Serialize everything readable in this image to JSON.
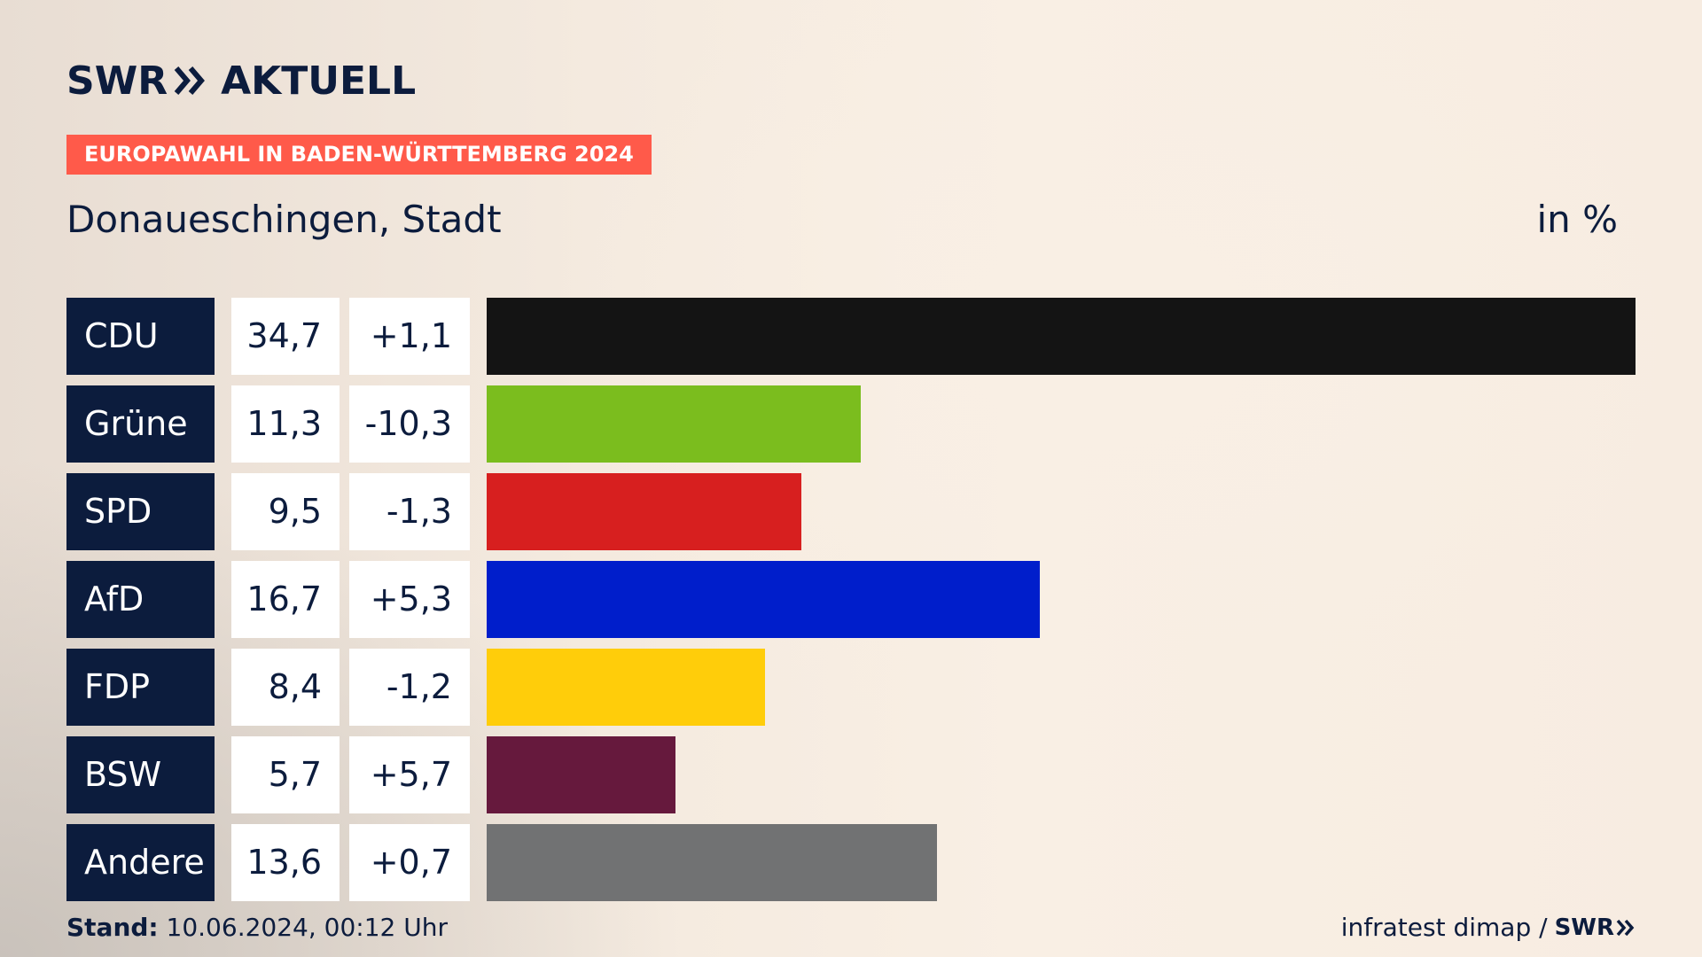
{
  "brand": {
    "logo_left": "SWR",
    "logo_right": "AKTUELL"
  },
  "tag": "EUROPAWAHL IN BADEN-WÜRTTEMBERG 2024",
  "subtitle": "Donaueschingen, Stadt",
  "unit": "in %",
  "colors": {
    "accent": "#ff5a4a",
    "navy": "#0c1c3d"
  },
  "chart_data": {
    "type": "bar",
    "orientation": "horizontal",
    "title": "Donaueschingen, Stadt",
    "unit": "in %",
    "xlim": [
      0,
      34.7
    ],
    "rows": [
      {
        "party": "CDU",
        "value": 34.7,
        "value_label": "34,7",
        "diff_label": "+1,1",
        "color": "#141414"
      },
      {
        "party": "Grüne",
        "value": 11.3,
        "value_label": "11,3",
        "diff_label": "-10,3",
        "color": "#7bbd1e"
      },
      {
        "party": "SPD",
        "value": 9.5,
        "value_label": "9,5",
        "diff_label": "-1,3",
        "color": "#d71f1f"
      },
      {
        "party": "AfD",
        "value": 16.7,
        "value_label": "16,7",
        "diff_label": "+5,3",
        "color": "#001ecb"
      },
      {
        "party": "FDP",
        "value": 8.4,
        "value_label": "8,4",
        "diff_label": "-1,2",
        "color": "#ffcd0a"
      },
      {
        "party": "BSW",
        "value": 5.7,
        "value_label": "5,7",
        "diff_label": "+5,7",
        "color": "#66193d"
      },
      {
        "party": "Andere",
        "value": 13.6,
        "value_label": "13,6",
        "diff_label": "+0,7",
        "color": "#717273"
      }
    ]
  },
  "footer": {
    "stand_label": "Stand:",
    "stand_value": "10.06.2024, 00:12 Uhr",
    "source": "infratest dimap /",
    "source_brand": "SWR"
  }
}
